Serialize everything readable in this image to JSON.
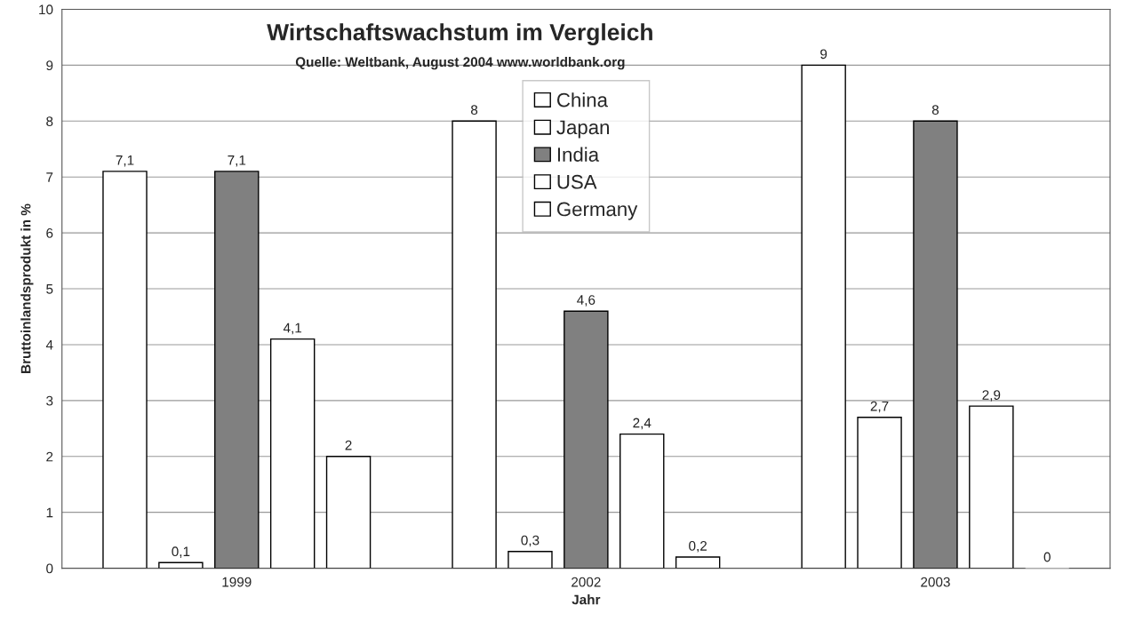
{
  "chart_data": {
    "type": "bar",
    "title": "Wirtschaftswachstum im Vergleich",
    "subtitle": "Quelle: Weltbank, August 2004 www.worldbank.org",
    "xlabel": "Jahr",
    "ylabel": "Bruttoinlandsprodukt in %",
    "categories": [
      "1999",
      "2002",
      "2003"
    ],
    "series": [
      {
        "name": "China",
        "color": "#ffffff",
        "values": [
          7.1,
          8,
          9
        ],
        "value_labels": [
          "7,1",
          "8",
          "9"
        ]
      },
      {
        "name": "Japan",
        "color": "#ffffff",
        "values": [
          0.1,
          0.3,
          2.7
        ],
        "value_labels": [
          "0,1",
          "0,3",
          "2,7"
        ]
      },
      {
        "name": "India",
        "color": "#808080",
        "values": [
          7.1,
          4.6,
          8
        ],
        "value_labels": [
          "7,1",
          "4,6",
          "8"
        ]
      },
      {
        "name": "USA",
        "color": "#ffffff",
        "values": [
          4.1,
          2.4,
          2.9
        ],
        "value_labels": [
          "4,1",
          "2,4",
          "2,9"
        ]
      },
      {
        "name": "Germany",
        "color": "#ffffff",
        "values": [
          2,
          0.2,
          0
        ],
        "value_labels": [
          "2",
          "0,2",
          "0"
        ]
      }
    ],
    "ylim": [
      0,
      10
    ],
    "yticks": [
      0,
      1,
      2,
      3,
      4,
      5,
      6,
      7,
      8,
      9,
      10
    ],
    "grid": "y",
    "legend": "top"
  }
}
